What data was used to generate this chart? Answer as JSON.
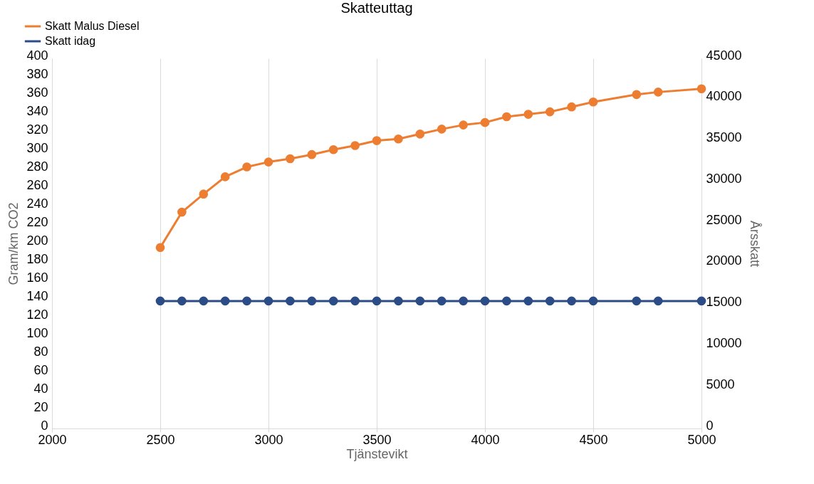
{
  "chart_data": {
    "type": "line",
    "title": "Skatteuttag",
    "xlabel": "Tjänstevikt",
    "ylabel": "Gram/km CO2",
    "y2label": "Årsskatt",
    "x": [
      2500,
      2600,
      2700,
      2800,
      2900,
      3000,
      3100,
      3200,
      3300,
      3400,
      3500,
      3600,
      3700,
      3800,
      3900,
      4000,
      4100,
      4200,
      4300,
      4400,
      4500,
      4700,
      4800,
      5000
    ],
    "series": [
      {
        "name": "Skatt Malus Diesel",
        "color": "#ed7d31",
        "axis": "y2",
        "values": [
          22000,
          26300,
          28500,
          30600,
          31800,
          32400,
          32800,
          33300,
          33900,
          34400,
          35000,
          35200,
          35800,
          36400,
          36900,
          37200,
          37900,
          38200,
          38500,
          39100,
          39700,
          40600,
          40900,
          41300
        ]
      },
      {
        "name": "Skatt idag",
        "color": "#2b4c86",
        "axis": "y2",
        "values": [
          15500,
          15500,
          15500,
          15500,
          15500,
          15500,
          15500,
          15500,
          15500,
          15500,
          15500,
          15500,
          15500,
          15500,
          15500,
          15500,
          15500,
          15500,
          15500,
          15500,
          15500,
          15500,
          15500,
          15500
        ]
      }
    ],
    "xlim": [
      2000,
      5000
    ],
    "xticks": [
      2000,
      2500,
      3000,
      3500,
      4000,
      4500,
      5000
    ],
    "ylim": [
      0,
      400
    ],
    "yticks": [
      0,
      20,
      40,
      60,
      80,
      100,
      120,
      140,
      160,
      180,
      200,
      220,
      240,
      260,
      280,
      300,
      320,
      340,
      360,
      380,
      400
    ],
    "y2lim": [
      0,
      45000
    ],
    "y2ticks": [
      0,
      5000,
      10000,
      15000,
      20000,
      25000,
      30000,
      35000,
      40000,
      45000
    ],
    "grid": "x",
    "legend": "top left",
    "marker": "circle",
    "line_style": "solid"
  }
}
